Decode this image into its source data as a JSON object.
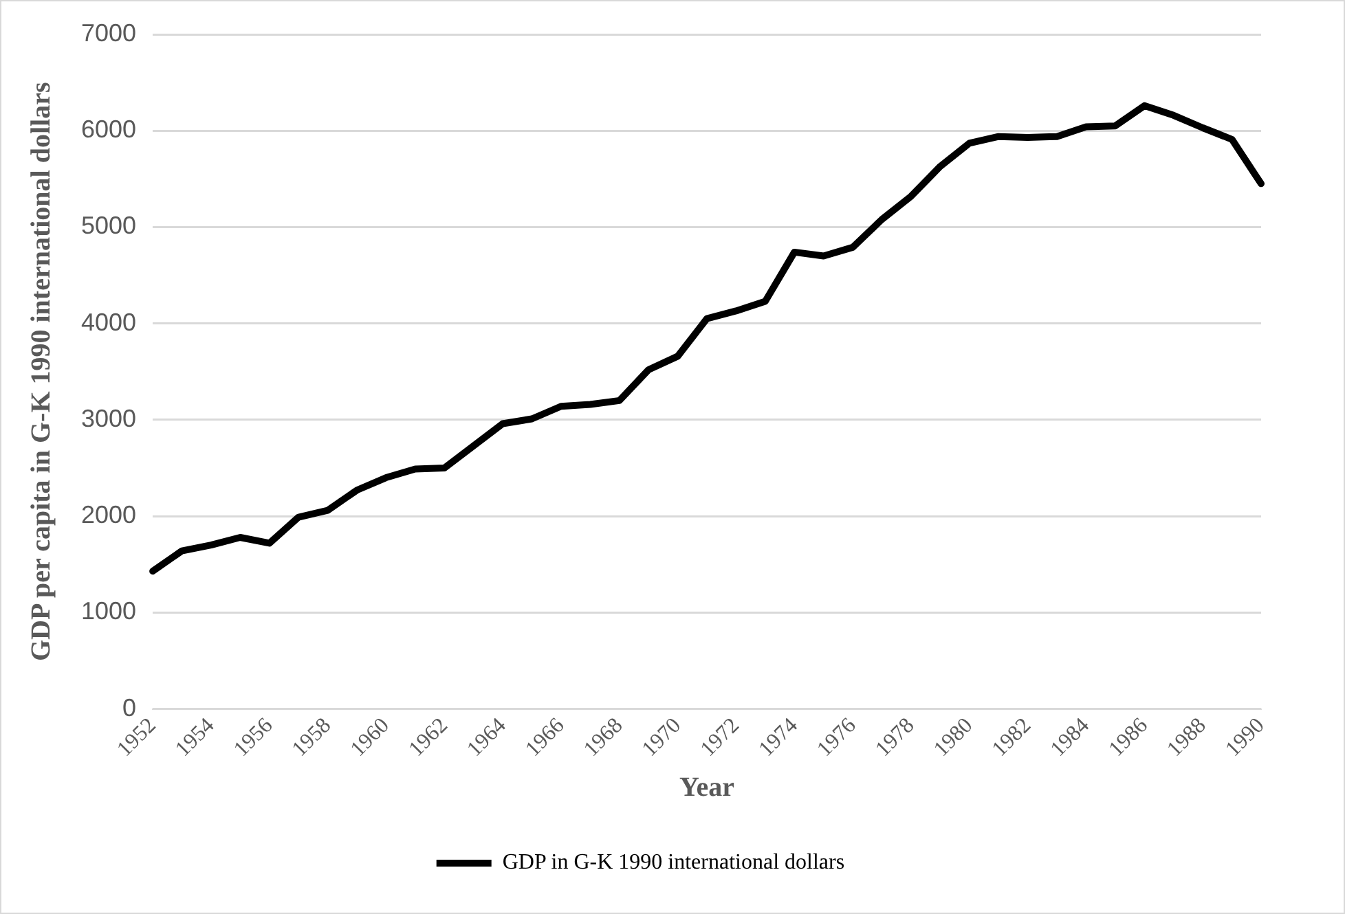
{
  "chart_data": {
    "type": "line",
    "xlabel": "Year",
    "ylabel": "GDP per capita in G-K 1990 international dollars",
    "categories": [
      "1952",
      null,
      "1954",
      null,
      "1956",
      null,
      "1958",
      null,
      "1960",
      null,
      "1962",
      null,
      "1964",
      null,
      "1966",
      null,
      "1968",
      null,
      "1970",
      null,
      "1972",
      null,
      "1974",
      null,
      "1976",
      null,
      "1978",
      null,
      "1980",
      null,
      "1982",
      null,
      "1984",
      null,
      "1986",
      null,
      "1988",
      null,
      "1990"
    ],
    "series": [
      {
        "name": "GDP in G-K 1990 international dollars",
        "color": "#000000",
        "values": [
          1430,
          1640,
          1700,
          1780,
          1720,
          1990,
          2060,
          2270,
          2400,
          2490,
          2500,
          2730,
          2960,
          3010,
          3140,
          3160,
          3200,
          3520,
          3660,
          4050,
          4130,
          4230,
          4740,
          4700,
          4790,
          5080,
          5320,
          5630,
          5870,
          5940,
          5930,
          5940,
          6040,
          6050,
          6260,
          6160,
          6030,
          5910,
          5450
        ]
      }
    ],
    "ylim": [
      0,
      7000
    ],
    "yticks": [
      0,
      1000,
      2000,
      3000,
      4000,
      5000,
      6000,
      7000
    ],
    "grid": "y",
    "legend": "bottom",
    "marker": "none",
    "line_style": "solid"
  }
}
